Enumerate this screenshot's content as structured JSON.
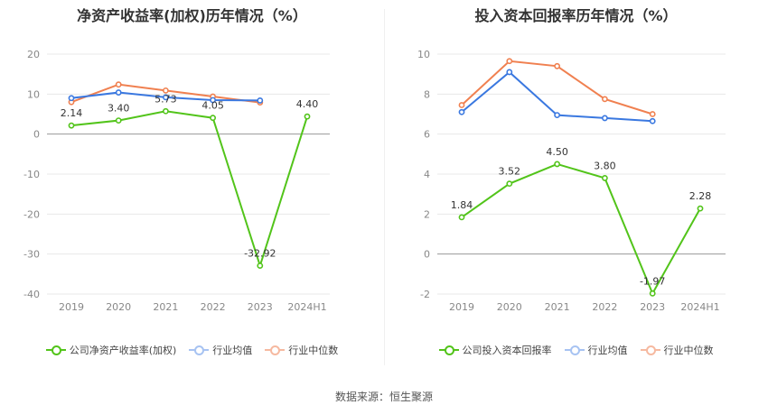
{
  "chart_data": [
    {
      "type": "line",
      "title": "净资产收益率(加权)历年情况（%）",
      "categories": [
        "2019",
        "2020",
        "2021",
        "2022",
        "2023",
        "2024H1"
      ],
      "ylim": [
        -40,
        20
      ],
      "yticks": [
        20,
        10,
        0,
        -10,
        -20,
        -30,
        -40
      ],
      "series": [
        {
          "name": "公司净资产收益率(加权)",
          "color": "#52c41a",
          "values": [
            2.14,
            3.4,
            5.73,
            4.05,
            -32.92,
            4.4
          ],
          "labels": [
            "2.14",
            "3.40",
            "5.73",
            "4.05",
            "-32.92",
            "4.40"
          ]
        },
        {
          "name": "行业均值",
          "color": "#3a78e0",
          "values": [
            9.0,
            10.4,
            9.2,
            8.5,
            8.4,
            null
          ]
        },
        {
          "name": "行业中位数",
          "color": "#f08050",
          "values": [
            8.0,
            12.4,
            10.9,
            9.4,
            7.9,
            null
          ]
        }
      ]
    },
    {
      "type": "line",
      "title": "投入资本回报率历年情况（%）",
      "categories": [
        "2019",
        "2020",
        "2021",
        "2022",
        "2023",
        "2024H1"
      ],
      "ylim": [
        -2,
        10
      ],
      "yticks": [
        10,
        8,
        6,
        4,
        2,
        0,
        -2
      ],
      "series": [
        {
          "name": "公司投入资本回报率",
          "color": "#52c41a",
          "values": [
            1.84,
            3.52,
            4.5,
            3.8,
            -1.97,
            2.28
          ],
          "labels": [
            "1.84",
            "3.52",
            "4.50",
            "3.80",
            "-1.97",
            "2.28"
          ]
        },
        {
          "name": "行业均值",
          "color": "#3a78e0",
          "values": [
            7.1,
            9.1,
            6.95,
            6.8,
            6.65,
            null
          ]
        },
        {
          "name": "行业中位数",
          "color": "#f08050",
          "values": [
            7.45,
            9.65,
            9.4,
            7.75,
            7.0,
            null
          ]
        }
      ]
    }
  ],
  "source": "数据来源：恒生聚源"
}
